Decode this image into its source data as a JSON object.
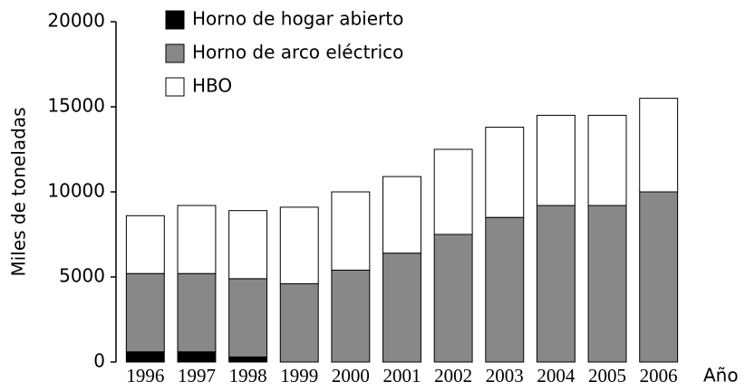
{
  "chart_data": {
    "type": "stacked_bar",
    "categories": [
      "1996",
      "1997",
      "1998",
      "1999",
      "2000",
      "2001",
      "2002",
      "2003",
      "2004",
      "2005",
      "2006"
    ],
    "series": [
      {
        "name": "Horno de hogar abierto",
        "color": "#000000",
        "values": [
          600,
          600,
          300,
          0,
          0,
          0,
          0,
          0,
          0,
          0,
          0
        ]
      },
      {
        "name": "Horno de arco eléctrico",
        "color": "#888888",
        "values": [
          4600,
          4600,
          4600,
          4600,
          5400,
          6400,
          7500,
          8500,
          9200,
          9200,
          10000
        ]
      },
      {
        "name": "HBO",
        "color": "#ffffff",
        "values": [
          3400,
          4000,
          4000,
          4500,
          4600,
          4500,
          5000,
          5300,
          5300,
          5300,
          5500
        ]
      }
    ],
    "ylabel": "Miles de toneladas",
    "xlabel": "Año",
    "ylim": [
      0,
      20000
    ],
    "yticks": [
      0,
      5000,
      10000,
      15000,
      20000
    ],
    "legend": "top-left"
  }
}
